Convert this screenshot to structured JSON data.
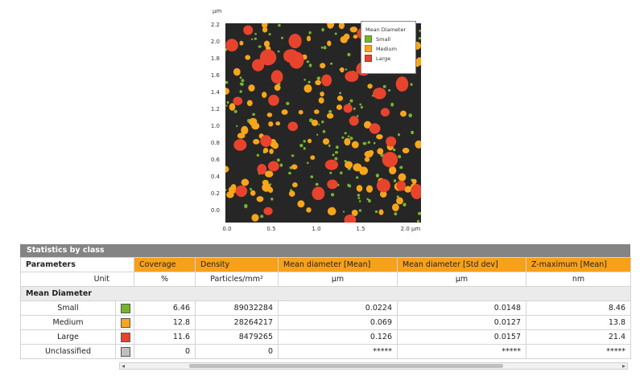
{
  "map": {
    "y_unit": "µm",
    "x_unit": "µm",
    "y_ticks": [
      "2.2",
      "2.0",
      "1.8",
      "1.6",
      "1.4",
      "1.2",
      "1.0",
      "0.8",
      "0.6",
      "0.4",
      "0.2",
      "0.0"
    ],
    "x_ticks": [
      "0.0",
      "0.5",
      "1.0",
      "1.5",
      "2.0 µm"
    ],
    "legend": {
      "title": "Mean Diameter",
      "items": [
        {
          "label": "Small",
          "color": "#77b52f"
        },
        {
          "label": "Medium",
          "color": "#f7a51a"
        },
        {
          "label": "Large",
          "color": "#e8432c"
        }
      ]
    },
    "colors": {
      "background": "#262626",
      "small": "#77b52f",
      "medium": "#f7a51a",
      "large": "#e8432c"
    }
  },
  "stats": {
    "title": "Statistics by class",
    "param_header": "Parameters",
    "columns": [
      "Coverage",
      "Density",
      "Mean diameter [Mean]",
      "Mean diameter [Std dev]",
      "Z-maximum [Mean]"
    ],
    "unit_label": "Unit",
    "units": [
      "%",
      "Particles/mm²",
      "µm",
      "µm",
      "nm"
    ],
    "section": "Mean Diameter",
    "rows": [
      {
        "name": "Small",
        "color": "#77b52f",
        "values": [
          "6.46",
          "89032284",
          "0.0224",
          "0.0148",
          "8.46"
        ]
      },
      {
        "name": "Medium",
        "color": "#f7a51a",
        "values": [
          "12.8",
          "28264217",
          "0.069",
          "0.0127",
          "13.8"
        ]
      },
      {
        "name": "Large",
        "color": "#e8432c",
        "values": [
          "11.6",
          "8479265",
          "0.126",
          "0.0157",
          "21.4"
        ]
      },
      {
        "name": "Unclassified",
        "color": "#c0c0c0",
        "values": [
          "0",
          "0",
          "*****",
          "*****",
          "*****"
        ]
      }
    ]
  }
}
